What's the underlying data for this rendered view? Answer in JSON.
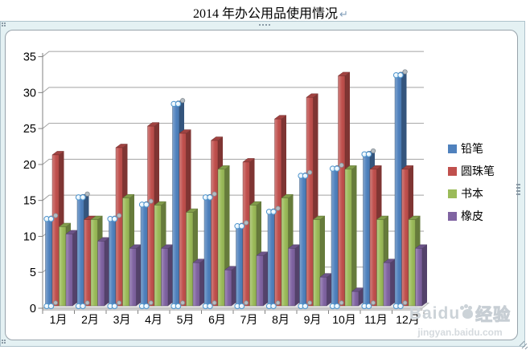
{
  "title": {
    "text": "2014 年办公用品使用情况",
    "paragraph_mark": "↵"
  },
  "chart_data": {
    "type": "bar",
    "style": "3d-clustered-column",
    "title": "2014 年办公用品使用情况",
    "categories": [
      "1月",
      "2月",
      "3月",
      "4月",
      "5月",
      "6月",
      "7月",
      "8月",
      "9月",
      "10月",
      "11月",
      "12月"
    ],
    "series": [
      {
        "name": "铅笔",
        "color": "#4f81bd",
        "values": [
          12,
          15,
          12,
          14,
          28,
          15,
          11,
          13,
          18,
          19,
          21,
          32
        ]
      },
      {
        "name": "圆珠笔",
        "color": "#c0504d",
        "values": [
          21,
          12,
          22,
          25,
          24,
          23,
          20,
          26,
          29,
          32,
          19,
          19
        ]
      },
      {
        "name": "书本",
        "color": "#9bbb59",
        "values": [
          11,
          12,
          15,
          14,
          13,
          19,
          14,
          15,
          12,
          19,
          12,
          12
        ]
      },
      {
        "name": "橡皮",
        "color": "#8064a2",
        "values": [
          10,
          9,
          8,
          8,
          6,
          5,
          7,
          8,
          4,
          2,
          6,
          8
        ]
      }
    ],
    "selected_series": "铅笔",
    "y_axis": {
      "min": 0,
      "max": 35,
      "step": 5
    },
    "xlabel": "",
    "ylabel": "",
    "ylim": [
      0,
      35
    ],
    "gridlines": true,
    "legend_position": "right",
    "grid_color": "#a3a3a3",
    "floor_color": "#e6e6e6",
    "handle_color": "#4e94cc"
  },
  "watermark": {
    "brand": "Baidu",
    "suffix": "经验",
    "url": "jingyan.baidu.com"
  }
}
